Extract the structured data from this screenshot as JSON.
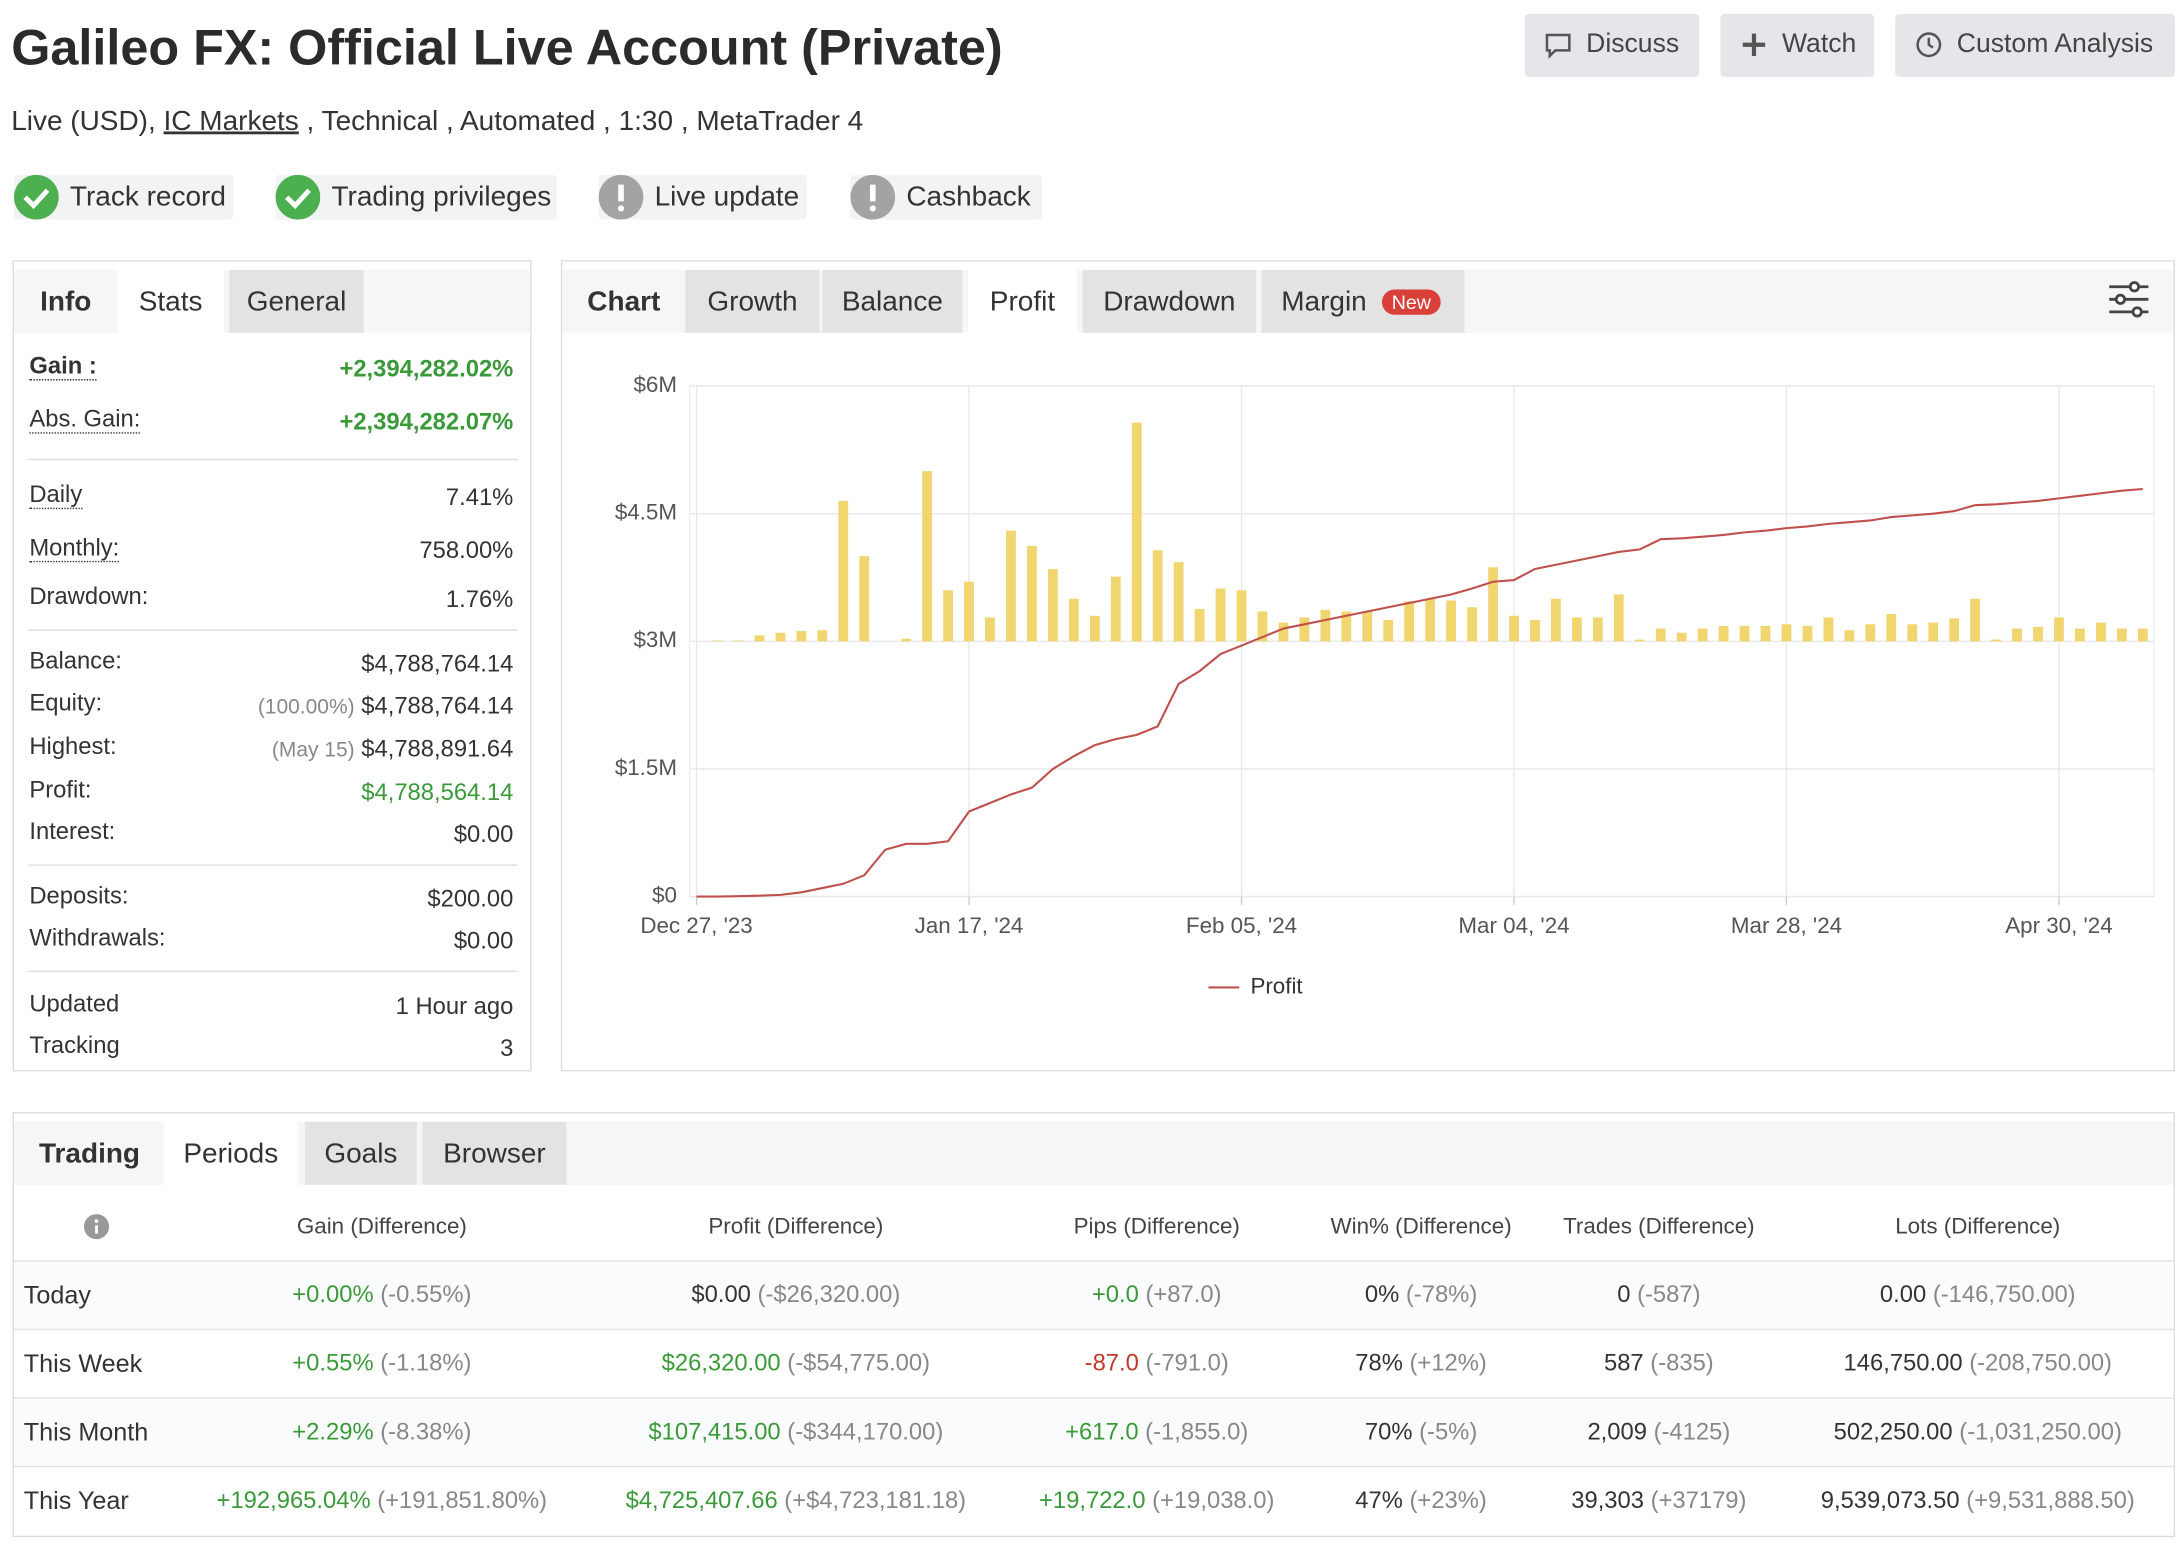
{
  "header": {
    "title": "Galileo FX: Official Live Account (Private)",
    "subtitle": {
      "before": "Live (USD),",
      "link": "IC Markets",
      "after": ", Technical , Automated , 1:30 , MetaTrader 4"
    },
    "buttons": [
      "Discuss",
      "Watch",
      "Custom Analysis"
    ]
  },
  "badges": [
    {
      "label": "Track record",
      "status": "ok"
    },
    {
      "label": "Trading privileges",
      "status": "ok"
    },
    {
      "label": "Live update",
      "status": "warn"
    },
    {
      "label": "Cashback",
      "status": "warn"
    }
  ],
  "stats": {
    "tabs": [
      "Info",
      "Stats",
      "General"
    ],
    "groups": [
      [
        {
          "label": "Gain :",
          "value": "+2,394,282.02%",
          "color": "#3a9a3a"
        },
        {
          "label": "Abs. Gain:",
          "value": "+2,394,282.07%",
          "color": "#3a9a3a"
        }
      ],
      [
        {
          "label": "Daily",
          "value": "7.41%"
        },
        {
          "label": "Monthly:",
          "value": "758.00%"
        },
        {
          "label": "Drawdown:",
          "value": "1.76%"
        }
      ],
      [
        {
          "label": "Balance:",
          "value": "$4,788,764.14"
        },
        {
          "label": "Equity:",
          "prefix": "(100.00%)",
          "value": "$4,788,764.14"
        },
        {
          "label": "Highest:",
          "prefix": "(May 15)",
          "value": "$4,788,891.64"
        },
        {
          "label": "Profit:",
          "value": "$4,788,564.14",
          "color": "#3a9a3a"
        },
        {
          "label": "Interest:",
          "value": "$0.00"
        }
      ],
      [
        {
          "label": "Deposits:",
          "value": "$200.00"
        },
        {
          "label": "Withdrawals:",
          "value": "$0.00"
        }
      ],
      [
        {
          "label": "Updated",
          "value": "1 Hour ago"
        },
        {
          "label": "Tracking",
          "value": "3"
        }
      ]
    ]
  },
  "chart_tabs": [
    "Chart",
    "Growth",
    "Balance",
    "Profit",
    "Drawdown",
    "Margin"
  ],
  "chart_tab_badge": "New",
  "chart_data": {
    "type": "bar+line",
    "categories": [
      "Dec 27, '23",
      null,
      null,
      null,
      null,
      null,
      null,
      null,
      null,
      null,
      null,
      null,
      null,
      "Jan 17, '24",
      null,
      null,
      null,
      null,
      null,
      null,
      null,
      null,
      null,
      null,
      null,
      null,
      "Feb 05, '24",
      null,
      null,
      null,
      null,
      null,
      null,
      null,
      null,
      null,
      null,
      null,
      null,
      "Mar 04, '24",
      null,
      null,
      null,
      null,
      null,
      null,
      null,
      null,
      null,
      null,
      null,
      null,
      "Mar 28, '24",
      null,
      null,
      null,
      null,
      null,
      null,
      null,
      null,
      null,
      null,
      null,
      null,
      "Apr 30, '24",
      null,
      null,
      null,
      null
    ],
    "series": [
      {
        "name": "Profit",
        "type": "line",
        "color": "#c0504d",
        "values": [
          0,
          0,
          5000,
          10000,
          20000,
          50000,
          100000,
          150000,
          250000,
          550000,
          620000,
          620000,
          650000,
          1000000,
          1100000,
          1200000,
          1280000,
          1500000,
          1650000,
          1780000,
          1850000,
          1900000,
          2000000,
          2500000,
          2650000,
          2850000,
          2950000,
          3050000,
          3150000,
          3200000,
          3250000,
          3300000,
          3350000,
          3400000,
          3450000,
          3500000,
          3550000,
          3620000,
          3700000,
          3720000,
          3850000,
          3900000,
          3950000,
          4000000,
          4050000,
          4080000,
          4200000,
          4210000,
          4230000,
          4250000,
          4280000,
          4300000,
          4330000,
          4350000,
          4380000,
          4400000,
          4420000,
          4460000,
          4480000,
          4500000,
          4530000,
          4600000,
          4610000,
          4630000,
          4650000,
          4680000,
          4710000,
          4740000,
          4770000,
          4790000
        ]
      },
      {
        "type": "bar",
        "axis": "y2",
        "color": "#f1d56e",
        "values": [
          0,
          10000,
          10000,
          70000,
          100000,
          120000,
          130000,
          1650000,
          1000000,
          0,
          30000,
          2000000,
          600000,
          700000,
          280000,
          1300000,
          1120000,
          850000,
          500000,
          300000,
          760000,
          2570000,
          1070000,
          930000,
          380000,
          620000,
          600000,
          350000,
          220000,
          280000,
          370000,
          350000,
          350000,
          250000,
          470000,
          500000,
          480000,
          400000,
          870000,
          300000,
          250000,
          500000,
          280000,
          280000,
          550000,
          20000,
          150000,
          100000,
          150000,
          180000,
          180000,
          180000,
          200000,
          180000,
          280000,
          130000,
          200000,
          320000,
          200000,
          220000,
          270000,
          500000,
          20000,
          150000,
          170000,
          280000,
          150000,
          220000,
          150000,
          150000
        ]
      }
    ],
    "ylim": [
      0,
      6000000
    ],
    "yticks": [
      {
        "value": 0,
        "label": "$0"
      },
      {
        "value": 1500000,
        "label": "$1.5M"
      },
      {
        "value": 3000000,
        "label": "$3M"
      },
      {
        "value": 4500000,
        "label": "$4.5M"
      },
      {
        "value": 6000000,
        "label": "$6M"
      }
    ],
    "y2lim": [
      -3000000,
      3000000
    ],
    "grid": true,
    "legend": "bottom"
  },
  "periods": {
    "tabs": [
      "Trading",
      "Periods",
      "Goals",
      "Browser"
    ],
    "columns": [
      "Gain (Difference)",
      "Profit (Difference)",
      "Pips (Difference)",
      "Win% (Difference)",
      "Trades (Difference)",
      "Lots (Difference)"
    ],
    "rows": [
      {
        "label": "Today",
        "cells": [
          {
            "value": "+0.00%",
            "diff": "(-0.55%)",
            "color": "#3a9a3a"
          },
          {
            "value": "$0.00",
            "diff": "(-$26,320.00)"
          },
          {
            "value": "+0.0",
            "diff": "(+87.0)",
            "color": "#3a9a3a"
          },
          {
            "value": "0%",
            "diff": "(-78%)"
          },
          {
            "value": "0",
            "diff": "(-587)"
          },
          {
            "value": "0.00",
            "diff": "(-146,750.00)"
          }
        ]
      },
      {
        "label": "This Week",
        "cells": [
          {
            "value": "+0.55%",
            "diff": "(-1.18%)",
            "color": "#3a9a3a"
          },
          {
            "value": "$26,320.00",
            "diff": "(-$54,775.00)",
            "color": "#3a9a3a"
          },
          {
            "value": "-87.0",
            "diff": "(-791.0)",
            "color": "#c0392b"
          },
          {
            "value": "78%",
            "diff": "(+12%)"
          },
          {
            "value": "587",
            "diff": "(-835)"
          },
          {
            "value": "146,750.00",
            "diff": "(-208,750.00)"
          }
        ]
      },
      {
        "label": "This Month",
        "cells": [
          {
            "value": "+2.29%",
            "diff": "(-8.38%)",
            "color": "#3a9a3a"
          },
          {
            "value": "$107,415.00",
            "diff": "(-$344,170.00)",
            "color": "#3a9a3a"
          },
          {
            "value": "+617.0",
            "diff": "(-1,855.0)",
            "color": "#3a9a3a"
          },
          {
            "value": "70%",
            "diff": "(-5%)"
          },
          {
            "value": "2,009",
            "diff": "(-4125)"
          },
          {
            "value": "502,250.00",
            "diff": "(-1,031,250.00)"
          }
        ]
      },
      {
        "label": "This Year",
        "cells": [
          {
            "value": "+192,965.04%",
            "diff": "(+191,851.80%)",
            "color": "#3a9a3a"
          },
          {
            "value": "$4,725,407.66",
            "diff": "(+$4,723,181.18)",
            "color": "#3a9a3a"
          },
          {
            "value": "+19,722.0",
            "diff": "(+19,038.0)",
            "color": "#3a9a3a"
          },
          {
            "value": "47%",
            "diff": "(+23%)"
          },
          {
            "value": "39,303",
            "diff": "(+37179)"
          },
          {
            "value": "9,539,073.50",
            "diff": "(+9,531,888.50)"
          }
        ]
      }
    ]
  }
}
